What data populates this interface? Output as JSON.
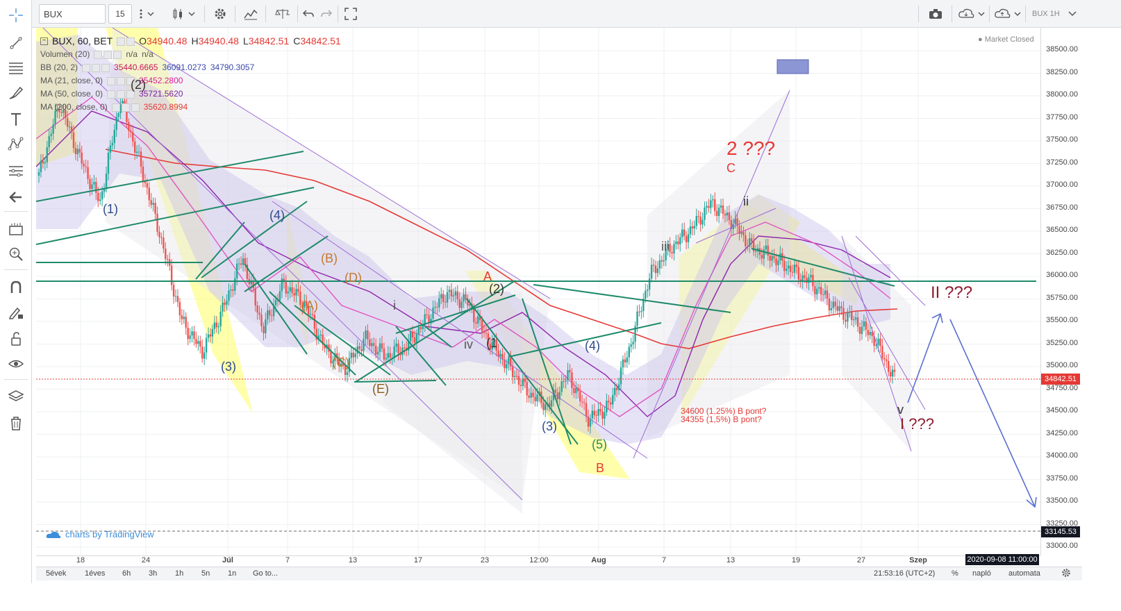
{
  "toolbar": {
    "symbol": "BUX",
    "interval": "15",
    "chart_name": "BUX 1H"
  },
  "legend": {
    "title": "BUX, 60, BET",
    "ohlc": {
      "o_label": "O",
      "o": "34940.48",
      "h_label": "H",
      "h": "34940.48",
      "l_label": "L",
      "l": "34842.51",
      "c_label": "C",
      "c": "34842.51"
    },
    "indicators": [
      {
        "name": "Volumen (20)",
        "values": [
          "n/a",
          "n/a"
        ]
      },
      {
        "name": "BB (20, 2)",
        "values": [
          "35440.6665",
          "36091.0273",
          "34790.3057"
        ]
      },
      {
        "name": "MA (21, close, 0)",
        "values": [
          "35452.2800"
        ]
      },
      {
        "name": "MA (50, close, 0)",
        "values": [
          "35721.5620"
        ]
      },
      {
        "name": "MA (200, close, 0)",
        "values": [
          "35620.8994"
        ]
      }
    ]
  },
  "status": {
    "market": "Market Closed"
  },
  "price_axis": {
    "ticks": [
      "38500.00",
      "38250.00",
      "38000.00",
      "37750.00",
      "37500.00",
      "37250.00",
      "37000.00",
      "36750.00",
      "36500.00",
      "36250.00",
      "36000.00",
      "35750.00",
      "35500.00",
      "35250.00",
      "35000.00",
      "34750.00",
      "34500.00",
      "34250.00",
      "34000.00",
      "33750.00",
      "33500.00",
      "33250.00",
      "33000.00"
    ],
    "last_price": "34842.51",
    "line_price": "33145.53"
  },
  "time_axis": {
    "labels": [
      "18",
      "24",
      "Júl",
      "7",
      "13",
      "17",
      "23",
      "12:00",
      "Aug",
      "7",
      "13",
      "19",
      "27",
      "Szep"
    ],
    "cursor_time": "2020-09-08 11:00:00"
  },
  "bottom": {
    "ranges": [
      "5évek",
      "1éves",
      "6h",
      "3h",
      "1h",
      "5n",
      "1n"
    ],
    "goto": "Go to...",
    "clock": "21:53:16 (UTC+2)",
    "percent": "%",
    "log": "napló",
    "auto": "automata"
  },
  "watermark": "charts by TradingView",
  "annotations": {
    "wave2": "2 ???",
    "waveC": "C",
    "waveII": "II ???",
    "waveI": "I ???",
    "waveA": "A",
    "waveB": "B",
    "note1": "34600 (1,25%) B pont?",
    "note2": "34355 (1,5%) B pont?",
    "w1": "(1)",
    "w2": "(2)",
    "w3a": "(3)",
    "w4a": "(4)",
    "wA": "(A)",
    "wB": "(B)",
    "wC": "(C)",
    "wD": "(D)",
    "wE": "(E)",
    "w3b": "(3)",
    "w4b": "(4)",
    "w5b": "(5)",
    "w1b": "(1",
    "w2b": "(2)",
    "iii": "iii",
    "iv": "iv",
    "ii": "ii",
    "i": "i",
    "v": "v"
  },
  "colors": {
    "red": "#e53935",
    "candle_up": "#26a69a",
    "candle_down": "#ef5350",
    "teal": "#1e8a6a",
    "purple": "#9c27b0",
    "yellow": "#ffff66"
  },
  "chart_data": {
    "type": "candlestick",
    "title": "BUX, 60, BET",
    "ylim": [
      33000,
      38500
    ],
    "series_close_path": [
      37100,
      37900,
      37300,
      36800,
      37950,
      37200,
      36400,
      35500,
      35150,
      35600,
      36200,
      35400,
      35900,
      35700,
      35200,
      34950,
      35300,
      35100,
      35200,
      35500,
      35800,
      35700,
      35300,
      35000,
      34700,
      34550,
      34900,
      34400,
      34550,
      35200,
      36000,
      36300,
      36500,
      36800,
      36600,
      36300,
      36200,
      36050,
      35900,
      35650,
      35500,
      35300,
      34842
    ]
  }
}
